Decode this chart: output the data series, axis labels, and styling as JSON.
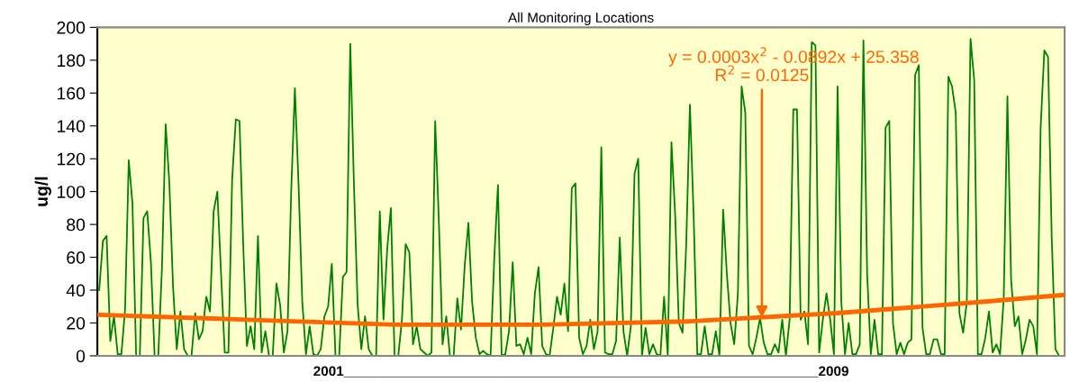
{
  "chart_data": {
    "type": "line",
    "title": "All Monitoring Locations",
    "xlabel": "2001______________________________________________________________2009",
    "ylabel": "ug/l",
    "categories": [
      null,
      null,
      null,
      null,
      null,
      null,
      null,
      null,
      null,
      null,
      null,
      null,
      null,
      null,
      null,
      null,
      null,
      null,
      null,
      null,
      null,
      null,
      null,
      null,
      null,
      null,
      null,
      null,
      null,
      null,
      null,
      null,
      null,
      null,
      null,
      null,
      null,
      null,
      null,
      null,
      null,
      null,
      null,
      null,
      null,
      null,
      null,
      null,
      null,
      null,
      null,
      null,
      null,
      null,
      null,
      null,
      null,
      null,
      null,
      null,
      null,
      null,
      null,
      null,
      null,
      null,
      null,
      null,
      null,
      null,
      null,
      null,
      null,
      null,
      null,
      null,
      null,
      null,
      null,
      null,
      null,
      null,
      null,
      null,
      null,
      null,
      null,
      null,
      null,
      null,
      null,
      null,
      null,
      null,
      null,
      null,
      null,
      null,
      null,
      null,
      null,
      null,
      null,
      null,
      null,
      null,
      null,
      null,
      null,
      null,
      null,
      null,
      null,
      null,
      null,
      null,
      null,
      null,
      null,
      null,
      null,
      null,
      null,
      null,
      null,
      null,
      null,
      null,
      null,
      null,
      null,
      null,
      null,
      null,
      null,
      null,
      null,
      null,
      null,
      null,
      null,
      null,
      null,
      null,
      null,
      null,
      null,
      null,
      null,
      null,
      null,
      null,
      null,
      null,
      null,
      null,
      null,
      null,
      null,
      null,
      null,
      null,
      null,
      null,
      null,
      null,
      null,
      null,
      null,
      null,
      null,
      null,
      null,
      null,
      null,
      null,
      null,
      null,
      null,
      null,
      null,
      null,
      null,
      null,
      null,
      null,
      null,
      null,
      null,
      null,
      null,
      null,
      null,
      null,
      null,
      null,
      null,
      null,
      null,
      null,
      null,
      null,
      null,
      null,
      null,
      null,
      null,
      null,
      null,
      null,
      null,
      null,
      null,
      null,
      null,
      null,
      null,
      null,
      null,
      null,
      null,
      null,
      null,
      null,
      null,
      null,
      null,
      null,
      null,
      null,
      null,
      null,
      null,
      null,
      null,
      null,
      null,
      null,
      null,
      null,
      null,
      null,
      null,
      null,
      null,
      null,
      null,
      null,
      null,
      null,
      null,
      null,
      null,
      null,
      null,
      null,
      null,
      null,
      null,
      null,
      null,
      null
    ],
    "ylim": [
      0,
      200
    ],
    "yticks": [
      0,
      20,
      40,
      60,
      80,
      100,
      120,
      140,
      160,
      180,
      200
    ],
    "tick_labels": "y",
    "grid": false,
    "legend": false,
    "marker": "none",
    "line_style": "solid",
    "series": [
      {
        "color": "#008000",
        "values": [
          40,
          70,
          73,
          9,
          24,
          1,
          1,
          28,
          119,
          93,
          0,
          0,
          84,
          88,
          57,
          0,
          0,
          54,
          141,
          105,
          42,
          4,
          27,
          4,
          0,
          0,
          26,
          10,
          15,
          36,
          27,
          88,
          100,
          50,
          2,
          2,
          107,
          144,
          143,
          68,
          6,
          18,
          4,
          73,
          2,
          15,
          0,
          0,
          44,
          31,
          2,
          15,
          100,
          163,
          104,
          33,
          1,
          18,
          1,
          0,
          4,
          24,
          30,
          56,
          0,
          0,
          48,
          51,
          190,
          104,
          31,
          4,
          24,
          4,
          0,
          0,
          88,
          22,
          65,
          90,
          0,
          0,
          22,
          68,
          63,
          7,
          18,
          4,
          2,
          0,
          2,
          143,
          82,
          7,
          24,
          0,
          0,
          35,
          16,
          55,
          81,
          33,
          11,
          1,
          3,
          1,
          0,
          59,
          104,
          0,
          1,
          15,
          57,
          6,
          7,
          1,
          11,
          1,
          38,
          54,
          6,
          1,
          0,
          17,
          36,
          25,
          44,
          15,
          102,
          105,
          11,
          1,
          6,
          22,
          4,
          15,
          127,
          2,
          1,
          1,
          9,
          72,
          15,
          0,
          18,
          111,
          120,
          0,
          17,
          1,
          7,
          1,
          0,
          36,
          0,
          130,
          86,
          20,
          14,
          68,
          153,
          86,
          1,
          1,
          18,
          1,
          1,
          15,
          0,
          89,
          50,
          20,
          7,
          38,
          164,
          148,
          6,
          1,
          11,
          23,
          8,
          1,
          1,
          7,
          2,
          22,
          0,
          22,
          150,
          150,
          22,
          27,
          7,
          191,
          189,
          2,
          22,
          38,
          22,
          1,
          164,
          33,
          1,
          20,
          1,
          1,
          7,
          192,
          50,
          1,
          22,
          1,
          1,
          139,
          143,
          20,
          1,
          8,
          1,
          8,
          10,
          171,
          177,
          17,
          1,
          1,
          10,
          10,
          1,
          1,
          170,
          164,
          148,
          26,
          14,
          33,
          193,
          168,
          1,
          1,
          11,
          27,
          2,
          7,
          1,
          35,
          158,
          46,
          18,
          24,
          1,
          10,
          22,
          18,
          1,
          139,
          186,
          182,
          72,
          4,
          0,
          0
        ]
      },
      {
        "color": "#ff6600",
        "values": [
          25,
          null,
          null,
          null,
          null,
          null,
          null,
          null,
          null,
          null,
          null,
          null,
          null,
          null,
          null,
          null,
          null,
          null,
          null,
          null,
          null,
          null,
          null,
          null,
          null,
          null,
          null,
          null,
          null,
          null,
          null,
          null,
          null,
          null,
          null,
          null,
          null,
          null,
          null,
          null,
          22,
          null,
          null,
          null,
          null,
          null,
          null,
          null,
          null,
          null,
          null,
          null,
          null,
          null,
          null,
          null,
          null,
          null,
          null,
          null,
          null,
          null,
          null,
          null,
          null,
          null,
          null,
          null,
          null,
          null,
          null,
          null,
          null,
          null,
          null,
          null,
          null,
          null,
          null,
          null,
          19,
          null,
          null,
          null,
          null,
          null,
          null,
          null,
          null,
          null,
          null,
          null,
          null,
          null,
          null,
          null,
          null,
          null,
          null,
          null,
          null,
          null,
          null,
          null,
          null,
          null,
          null,
          null,
          null,
          null,
          null,
          null,
          null,
          null,
          null,
          null,
          null,
          null,
          null,
          null,
          19,
          null,
          null,
          null,
          null,
          null,
          null,
          null,
          null,
          null,
          null,
          null,
          null,
          null,
          null,
          null,
          null,
          null,
          null,
          null,
          null,
          null,
          null,
          null,
          null,
          null,
          null,
          null,
          null,
          null,
          null,
          null,
          null,
          null,
          null,
          null,
          null,
          null,
          null,
          null,
          21,
          null,
          null,
          null,
          null,
          null,
          null,
          null,
          null,
          null,
          null,
          null,
          null,
          null,
          null,
          null,
          null,
          null,
          null,
          null,
          null,
          null,
          null,
          null,
          null,
          null,
          null,
          null,
          null,
          null,
          null,
          null,
          null,
          null,
          null,
          null,
          null,
          null,
          null,
          null,
          26,
          null,
          null,
          null,
          null,
          null,
          null,
          null,
          null,
          null,
          null,
          null,
          null,
          null,
          null,
          null,
          null,
          null,
          null,
          null,
          null,
          null,
          null,
          null,
          null,
          null,
          null,
          null,
          null,
          null,
          null,
          null,
          null,
          null,
          null,
          null,
          null,
          null,
          null,
          null,
          33,
          null,
          null,
          null,
          null,
          null,
          null,
          null,
          null,
          null,
          null,
          null,
          null,
          null,
          null,
          null,
          null,
          null,
          null,
          null,
          null,
          37
        ]
      }
    ],
    "annotations": [
      "y = 0.0003x$^{2}$ - 0.0892x + 25.358",
      {
        "text": "R$^{2}$ = 0.0125",
        "y": 23
      }
    ]
  }
}
